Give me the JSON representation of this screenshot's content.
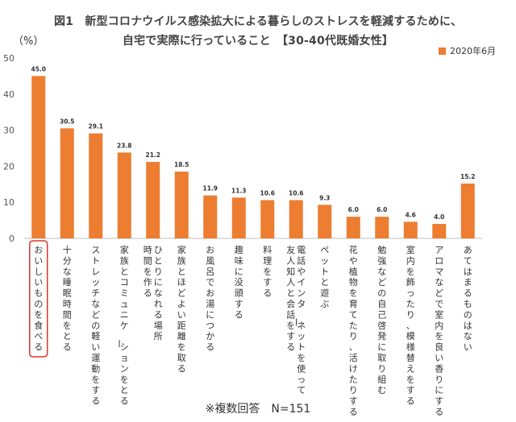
{
  "chart_data": {
    "type": "bar",
    "title_line1": "図1　新型コロナウイルス感染拡大による暮らしのストレスを軽減するために、",
    "title_line2": "自宅で実際に行っていること　【30-40代既婚女性】",
    "ylabel": "（%）",
    "ylim": [
      0,
      50
    ],
    "yticks": [
      0,
      10,
      20,
      30,
      40,
      50
    ],
    "grid": false,
    "legend_position": "top-right",
    "bar_color": "#ED7D31",
    "highlight_color": "#E0322F",
    "highlight_index": 0,
    "categories": [
      "おいしいものを食べる",
      "十分な睡眠時間をとる",
      "ストレッチなどの軽い運動をする",
      "家族とコミュニケーションをとる",
      "ひとりになれる場所　時間を作る",
      "家族とほどよい距離を取る",
      "お風呂でお湯につかる",
      "趣味に没頭する",
      "料理をする",
      "電話やインターネットを使って　友人知人と会話をする",
      "ペットと遊ぶ",
      "花や植物を育てたり、活けたりする",
      "勉強などの自己啓発に取り組む",
      "室内を飾ったり、模様替えをする",
      "アロマなどで室内を良い香りにする",
      "あてはまるものはない"
    ],
    "series": [
      {
        "name": "2020年6月",
        "values": [
          45.0,
          30.5,
          29.1,
          23.8,
          21.2,
          18.5,
          11.9,
          11.3,
          10.6,
          10.6,
          9.3,
          6.0,
          6.0,
          4.6,
          4.0,
          15.2
        ]
      }
    ]
  },
  "footnote": "※複数回答　N=151"
}
